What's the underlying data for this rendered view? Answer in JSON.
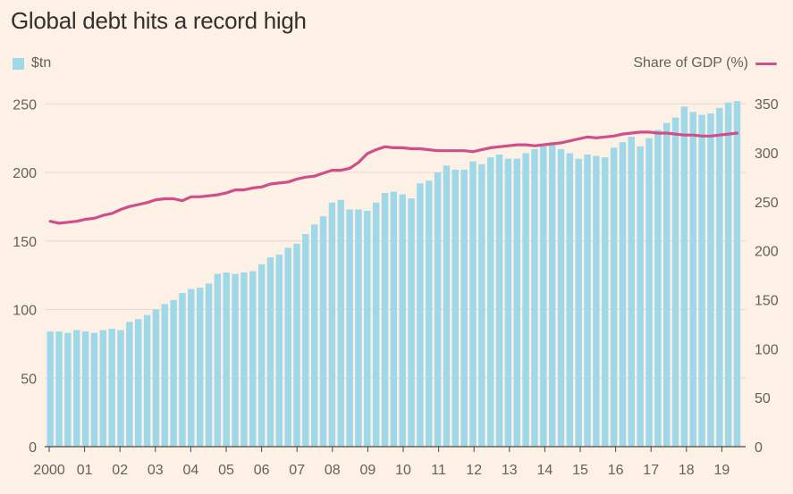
{
  "title": "Global debt hits a record high",
  "legend": {
    "left_label": "$tn",
    "right_label": "Share of GDP (%)"
  },
  "colors": {
    "bars": "#9fd8e8",
    "line": "#ce4f8a",
    "background": "#fdf1e5",
    "grid": "#e6d9ce"
  },
  "chart_data": {
    "type": "bar",
    "x_ticks": [
      "2000",
      "01",
      "02",
      "03",
      "04",
      "05",
      "06",
      "07",
      "08",
      "09",
      "10",
      "11",
      "12",
      "13",
      "14",
      "15",
      "16",
      "17",
      "18",
      "19"
    ],
    "left_axis": {
      "ticks": [
        0,
        50,
        100,
        150,
        200,
        250
      ],
      "ylim": [
        0,
        260
      ]
    },
    "right_axis": {
      "ticks": [
        0,
        50,
        100,
        150,
        200,
        250,
        300,
        350
      ],
      "ylim": [
        0,
        364
      ]
    },
    "series": [
      {
        "name": "$tn",
        "type": "bar",
        "axis": "left",
        "values": [
          84,
          84,
          83,
          85,
          84,
          83,
          85,
          86,
          85,
          91,
          93,
          96,
          100,
          104,
          107,
          112,
          115,
          116,
          119,
          126,
          127,
          126,
          127,
          128,
          133,
          138,
          140,
          145,
          148,
          155,
          162,
          168,
          178,
          180,
          173,
          173,
          172,
          178,
          185,
          186,
          184,
          181,
          192,
          194,
          200,
          205,
          202,
          202,
          208,
          206,
          211,
          213,
          210,
          210,
          214,
          217,
          219,
          222,
          217,
          214,
          210,
          213,
          212,
          211,
          218,
          222,
          226,
          219,
          225,
          231,
          236,
          240,
          248,
          244,
          242,
          243,
          247,
          251,
          252
        ]
      },
      {
        "name": "Share of GDP (%)",
        "type": "line",
        "axis": "right",
        "values": [
          230,
          228,
          229,
          230,
          232,
          233,
          236,
          238,
          242,
          245,
          247,
          249,
          252,
          253,
          253,
          251,
          255,
          255,
          256,
          257,
          259,
          262,
          262,
          264,
          265,
          268,
          269,
          270,
          273,
          275,
          276,
          279,
          282,
          282,
          284,
          290,
          299,
          303,
          306,
          305,
          305,
          304,
          304,
          303,
          302,
          302,
          302,
          302,
          301,
          303,
          305,
          306,
          307,
          308,
          308,
          307,
          308,
          309,
          310,
          312,
          314,
          316,
          315,
          316,
          317,
          319,
          320,
          321,
          321,
          320,
          320,
          319,
          318,
          318,
          317,
          317,
          318,
          319,
          320
        ]
      }
    ]
  }
}
